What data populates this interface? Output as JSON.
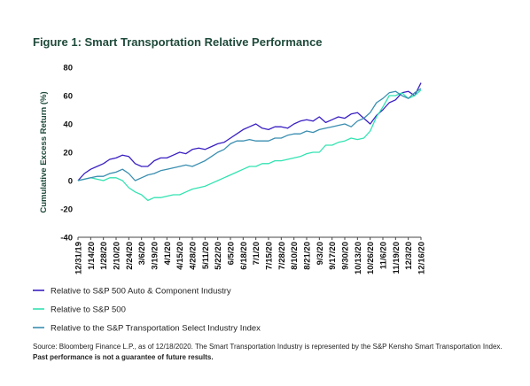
{
  "chart_data": {
    "type": "line",
    "title": "Figure 1: Smart Transportation Relative Performance",
    "y_label": "Cumulative Excess Return (%)",
    "categories": [
      "12/31/19",
      null,
      "1/14/20",
      null,
      "1/28/20",
      null,
      "2/10/20",
      null,
      "2/24/20",
      null,
      "3/6/20",
      null,
      "3/19/20",
      null,
      "4/1/20",
      null,
      "4/15/20",
      null,
      "4/28/20",
      null,
      "5/11/20",
      null,
      "5/22/20",
      null,
      "6/5/20",
      null,
      "6/18/20",
      null,
      "7/1/20",
      null,
      "7/15/20",
      null,
      "7/28/20",
      null,
      "8/10/20",
      null,
      "8/21/20",
      null,
      "9/3/20",
      null,
      "9/17/20",
      null,
      "9/30/20",
      null,
      "10/13/20",
      null,
      "10/26/20",
      null,
      "11/6/20",
      null,
      "11/19/20",
      null,
      "12/3/20",
      null,
      "12/16/20"
    ],
    "series": [
      {
        "name": "Relative to S&P 500 Auto & Component Industry",
        "color": "#3a1fc2",
        "values": [
          0,
          5,
          8,
          10,
          12,
          15,
          16,
          18,
          17,
          12,
          10,
          10,
          14,
          16,
          16,
          18,
          20,
          19,
          22,
          23,
          22,
          24,
          26,
          27,
          30,
          33,
          36,
          38,
          40,
          37,
          36,
          38,
          38,
          37,
          40,
          42,
          43,
          42,
          45,
          41,
          43,
          45,
          44,
          47,
          48,
          44,
          40,
          46,
          50,
          55,
          57,
          62,
          63,
          60,
          69
        ]
      },
      {
        "name": "Relative to S&P 500",
        "color": "#33e3b2",
        "values": [
          0,
          1,
          2,
          1,
          0,
          2,
          2,
          0,
          -5,
          -8,
          -10,
          -14,
          -12,
          -12,
          -11,
          -10,
          -10,
          -8,
          -6,
          -5,
          -4,
          -2,
          0,
          2,
          4,
          6,
          8,
          10,
          10,
          12,
          12,
          14,
          14,
          15,
          16,
          17,
          19,
          20,
          20,
          25,
          25,
          27,
          28,
          30,
          29,
          30,
          35,
          45,
          52,
          60,
          60,
          62,
          58,
          60,
          64
        ]
      },
      {
        "name": "Relative to the S&P Transportation Select Industry Index",
        "color": "#3a8eb0",
        "values": [
          0,
          1,
          2,
          3,
          3,
          5,
          6,
          8,
          5,
          0,
          2,
          4,
          5,
          7,
          8,
          9,
          10,
          11,
          10,
          12,
          14,
          17,
          20,
          22,
          26,
          28,
          28,
          29,
          28,
          28,
          28,
          30,
          30,
          32,
          33,
          33,
          35,
          34,
          36,
          37,
          38,
          39,
          40,
          38,
          42,
          44,
          48,
          55,
          58,
          62,
          63,
          60,
          58,
          62,
          65
        ]
      }
    ],
    "ylim": [
      -40,
      80
    ],
    "yticks": [
      -40,
      -20,
      0,
      20,
      40,
      60,
      80
    ],
    "grid": false
  },
  "footnote": {
    "text": "Source: Bloomberg Finance L.P., as of 12/18/2020. The Smart Transportation Industry is represented by the S&P Kensho Smart Transportation Index. ",
    "bold": "Past performance is not a guarantee of future results."
  }
}
